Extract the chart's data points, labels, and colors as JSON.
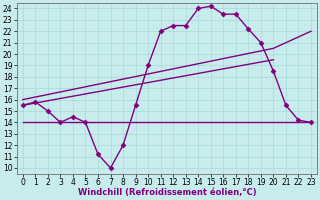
{
  "xlabel": "Windchill (Refroidissement éolien,°C)",
  "bg_color": "#c8ecec",
  "line_color": "#800080",
  "grid_color": "#a8d8d8",
  "xlim": [
    -0.5,
    23.5
  ],
  "ylim": [
    9.5,
    24.5
  ],
  "xticks": [
    0,
    1,
    2,
    3,
    4,
    5,
    6,
    7,
    8,
    9,
    10,
    11,
    12,
    13,
    14,
    15,
    16,
    17,
    18,
    19,
    20,
    21,
    22,
    23
  ],
  "yticks": [
    10,
    11,
    12,
    13,
    14,
    15,
    16,
    17,
    18,
    19,
    20,
    21,
    22,
    23,
    24
  ],
  "line1_x": [
    0,
    1,
    2,
    3,
    4,
    5,
    6,
    7,
    8,
    9,
    10,
    11,
    12,
    13,
    14,
    15,
    16,
    17,
    18,
    19,
    20,
    21,
    22,
    23
  ],
  "line1_y": [
    15.5,
    15.8,
    15.0,
    14.0,
    14.5,
    14.0,
    11.2,
    10.0,
    12.0,
    15.5,
    19.0,
    22.0,
    22.5,
    22.5,
    24.0,
    24.2,
    23.5,
    23.5,
    22.2,
    21.0,
    18.5,
    15.5,
    14.2,
    14.0
  ],
  "line2_x": [
    0,
    20,
    23
  ],
  "line2_y": [
    16.0,
    20.5,
    22.0
  ],
  "line3_x": [
    0,
    20
  ],
  "line3_y": [
    15.5,
    19.5
  ],
  "line4_x": [
    0,
    23
  ],
  "line4_y": [
    14.0,
    14.0
  ],
  "marker": "D",
  "markersize": 2.5,
  "linewidth": 1.0,
  "tick_fontsize": 5.5,
  "xlabel_fontsize": 6.0
}
